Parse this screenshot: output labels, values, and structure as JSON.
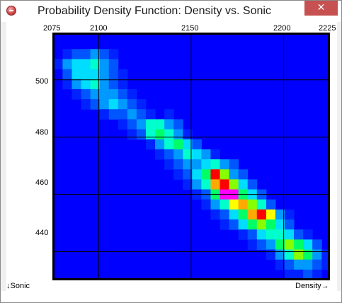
{
  "window": {
    "title": "Probability Density Function: Density vs. Sonic",
    "close_glyph": "✕",
    "system_icon": "app-icon-red-circle"
  },
  "plot": {
    "x_ticks": [
      "2075",
      "2100",
      "2150",
      "2200",
      "2225"
    ],
    "y_ticks": [
      "500",
      "480",
      "460",
      "440"
    ],
    "x_label": "Density→",
    "y_label": "↓Sonic"
  },
  "colors": {
    "background": "#0000ff",
    "grid": "#000000",
    "scale": [
      "#0000ff",
      "#0022ff",
      "#0055ff",
      "#0099ff",
      "#00ddff",
      "#00ffcc",
      "#00ff66",
      "#88ff00",
      "#ffff00",
      "#ffaa00",
      "#ff0000",
      "#ff00ff"
    ]
  },
  "chart_data": {
    "type": "heatmap",
    "title": "Probability Density Function: Density vs. Sonic",
    "xlabel": "Density",
    "ylabel": "Sonic",
    "xlim": [
      2075,
      2225
    ],
    "ylim": [
      500,
      440
    ],
    "x_ticks": [
      2075,
      2100,
      2150,
      2200,
      2225
    ],
    "y_ticks": [
      500,
      480,
      460,
      440
    ],
    "cell_size": {
      "x": 5,
      "y": 3.5
    },
    "cells": [
      [
        2083,
        509.0,
        1
      ],
      [
        2088,
        509.0,
        2
      ],
      [
        2093,
        509.0,
        2
      ],
      [
        2098,
        509.0,
        3
      ],
      [
        2103,
        509.0,
        2
      ],
      [
        2108,
        509.0,
        1
      ],
      [
        2078,
        505.5,
        1
      ],
      [
        2083,
        505.5,
        3
      ],
      [
        2088,
        505.5,
        4
      ],
      [
        2093,
        505.5,
        4
      ],
      [
        2098,
        505.5,
        5
      ],
      [
        2103,
        505.5,
        3
      ],
      [
        2108,
        505.5,
        2
      ],
      [
        2083,
        502.0,
        2
      ],
      [
        2088,
        502.0,
        4
      ],
      [
        2093,
        502.0,
        4
      ],
      [
        2098,
        502.0,
        4
      ],
      [
        2103,
        502.0,
        3
      ],
      [
        2108,
        502.0,
        2
      ],
      [
        2113,
        502.0,
        1
      ],
      [
        2083,
        498.5,
        1
      ],
      [
        2088,
        498.5,
        3
      ],
      [
        2093,
        498.5,
        4
      ],
      [
        2098,
        498.5,
        5
      ],
      [
        2103,
        498.5,
        3
      ],
      [
        2108,
        498.5,
        2
      ],
      [
        2113,
        498.5,
        1
      ],
      [
        2088,
        495.0,
        1
      ],
      [
        2093,
        495.0,
        2
      ],
      [
        2098,
        495.0,
        3
      ],
      [
        2103,
        495.0,
        3
      ],
      [
        2108,
        495.0,
        3
      ],
      [
        2113,
        495.0,
        2
      ],
      [
        2118,
        495.0,
        1
      ],
      [
        2093,
        491.5,
        1
      ],
      [
        2098,
        491.5,
        2
      ],
      [
        2103,
        491.5,
        3
      ],
      [
        2108,
        491.5,
        4
      ],
      [
        2113,
        491.5,
        3
      ],
      [
        2118,
        491.5,
        2
      ],
      [
        2123,
        491.5,
        1
      ],
      [
        2103,
        488.0,
        1
      ],
      [
        2108,
        488.0,
        2
      ],
      [
        2113,
        488.0,
        2
      ],
      [
        2118,
        488.0,
        3
      ],
      [
        2123,
        488.0,
        2
      ],
      [
        2128,
        488.0,
        1
      ],
      [
        2138,
        488.0,
        1
      ],
      [
        2113,
        484.5,
        1
      ],
      [
        2118,
        484.5,
        2
      ],
      [
        2123,
        484.5,
        3
      ],
      [
        2128,
        484.5,
        5
      ],
      [
        2133,
        484.5,
        5
      ],
      [
        2138,
        484.5,
        3
      ],
      [
        2143,
        484.5,
        2
      ],
      [
        2118,
        481.0,
        1
      ],
      [
        2123,
        481.0,
        2
      ],
      [
        2128,
        481.0,
        5
      ],
      [
        2133,
        481.0,
        6
      ],
      [
        2138,
        481.0,
        5
      ],
      [
        2143,
        481.0,
        3
      ],
      [
        2148,
        481.0,
        1
      ],
      [
        2128,
        477.5,
        1
      ],
      [
        2133,
        477.5,
        3
      ],
      [
        2138,
        477.5,
        5
      ],
      [
        2143,
        477.5,
        6
      ],
      [
        2148,
        477.5,
        4
      ],
      [
        2153,
        477.5,
        2
      ],
      [
        2133,
        474.0,
        1
      ],
      [
        2138,
        474.0,
        2
      ],
      [
        2143,
        474.0,
        3
      ],
      [
        2148,
        474.0,
        5
      ],
      [
        2153,
        474.0,
        4
      ],
      [
        2158,
        474.0,
        3
      ],
      [
        2163,
        474.0,
        1
      ],
      [
        2138,
        470.5,
        1
      ],
      [
        2143,
        470.5,
        2
      ],
      [
        2148,
        470.5,
        3
      ],
      [
        2153,
        470.5,
        3
      ],
      [
        2158,
        470.5,
        4
      ],
      [
        2163,
        470.5,
        5
      ],
      [
        2168,
        470.5,
        3
      ],
      [
        2173,
        470.5,
        2
      ],
      [
        2143,
        467.0,
        1
      ],
      [
        2148,
        467.0,
        2
      ],
      [
        2153,
        467.0,
        4
      ],
      [
        2158,
        467.0,
        6
      ],
      [
        2163,
        467.0,
        10
      ],
      [
        2168,
        467.0,
        7
      ],
      [
        2173,
        467.0,
        3
      ],
      [
        2178,
        467.0,
        2
      ],
      [
        2148,
        463.5,
        1
      ],
      [
        2153,
        463.5,
        3
      ],
      [
        2158,
        463.5,
        5
      ],
      [
        2163,
        463.5,
        9
      ],
      [
        2168,
        463.5,
        10
      ],
      [
        2173,
        463.5,
        7
      ],
      [
        2178,
        463.5,
        4
      ],
      [
        2183,
        463.5,
        2
      ],
      [
        2153,
        460.0,
        1
      ],
      [
        2158,
        460.0,
        2
      ],
      [
        2163,
        460.0,
        6
      ],
      [
        2168,
        460.0,
        11
      ],
      [
        2173,
        460.0,
        11
      ],
      [
        2178,
        460.0,
        6
      ],
      [
        2183,
        460.0,
        4
      ],
      [
        2188,
        460.0,
        2
      ],
      [
        2158,
        456.5,
        1
      ],
      [
        2163,
        456.5,
        3
      ],
      [
        2168,
        456.5,
        5
      ],
      [
        2173,
        456.5,
        8
      ],
      [
        2178,
        456.5,
        9
      ],
      [
        2183,
        456.5,
        7
      ],
      [
        2188,
        456.5,
        5
      ],
      [
        2193,
        456.5,
        2
      ],
      [
        2163,
        453.0,
        1
      ],
      [
        2168,
        453.0,
        2
      ],
      [
        2173,
        453.0,
        4
      ],
      [
        2178,
        453.0,
        6
      ],
      [
        2183,
        453.0,
        9
      ],
      [
        2188,
        453.0,
        10
      ],
      [
        2193,
        453.0,
        8
      ],
      [
        2198,
        453.0,
        3
      ],
      [
        2203,
        453.0,
        1
      ],
      [
        2168,
        449.5,
        1
      ],
      [
        2173,
        449.5,
        2
      ],
      [
        2178,
        449.5,
        4
      ],
      [
        2183,
        449.5,
        6
      ],
      [
        2188,
        449.5,
        7
      ],
      [
        2193,
        449.5,
        6
      ],
      [
        2198,
        449.5,
        4
      ],
      [
        2203,
        449.5,
        2
      ],
      [
        2178,
        446.0,
        1
      ],
      [
        2183,
        446.0,
        2
      ],
      [
        2188,
        446.0,
        4
      ],
      [
        2193,
        446.0,
        5
      ],
      [
        2198,
        446.0,
        5
      ],
      [
        2203,
        446.0,
        4
      ],
      [
        2208,
        446.0,
        2
      ],
      [
        2213,
        446.0,
        1
      ],
      [
        2183,
        442.5,
        1
      ],
      [
        2188,
        442.5,
        2
      ],
      [
        2193,
        442.5,
        3
      ],
      [
        2198,
        442.5,
        6
      ],
      [
        2203,
        442.5,
        7
      ],
      [
        2208,
        442.5,
        6
      ],
      [
        2213,
        442.5,
        4
      ],
      [
        2218,
        442.5,
        2
      ],
      [
        2193,
        439.0,
        1
      ],
      [
        2198,
        439.0,
        3
      ],
      [
        2203,
        439.0,
        5
      ],
      [
        2208,
        439.0,
        7
      ],
      [
        2213,
        439.0,
        6
      ],
      [
        2218,
        439.0,
        3
      ],
      [
        2223,
        439.0,
        1
      ],
      [
        2198,
        435.5,
        1
      ],
      [
        2203,
        435.5,
        2
      ],
      [
        2208,
        435.5,
        3
      ],
      [
        2213,
        435.5,
        3
      ],
      [
        2218,
        435.5,
        2
      ],
      [
        2223,
        435.5,
        1
      ],
      [
        2203,
        432.0,
        1
      ],
      [
        2208,
        432.0,
        1
      ],
      [
        2213,
        432.0,
        2
      ],
      [
        2218,
        432.0,
        1
      ]
    ]
  }
}
